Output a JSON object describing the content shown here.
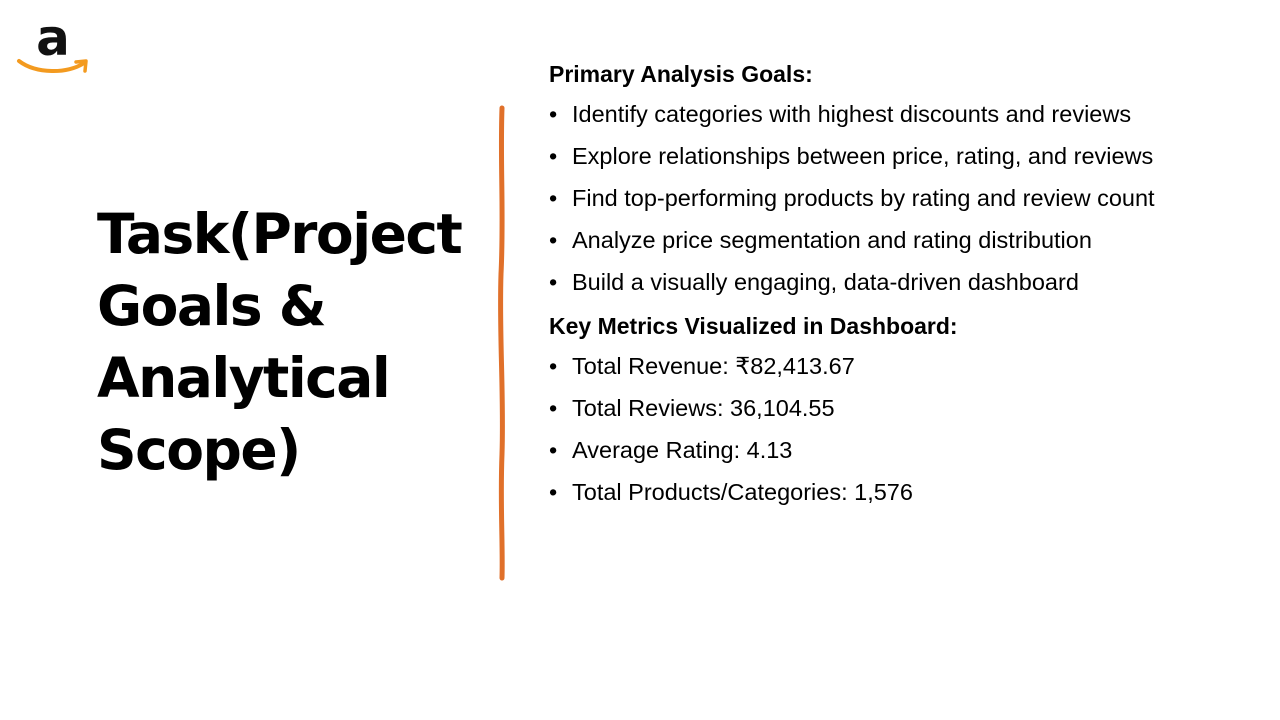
{
  "slide": {
    "logo": {
      "icon": "amazon-logo-icon",
      "letter": "a",
      "letter_color": "#111111",
      "smile_color": "#f39a1f"
    },
    "title_lines": [
      "Task(Project",
      "Goals &",
      "Analytical",
      "Scope)"
    ],
    "divider_color": "#e0702a",
    "primary_goals": {
      "heading": "Primary Analysis Goals:",
      "items": [
        "Identify categories with highest discounts and reviews",
        "Explore relationships between price, rating, and reviews",
        "Find top-performing products by rating and review count",
        "Analyze price segmentation and rating distribution",
        "Build a visually engaging, data-driven dashboard"
      ]
    },
    "key_metrics": {
      "heading": "Key Metrics Visualized in Dashboard:",
      "items": [
        "Total Revenue: ₹82,413.67",
        "Total Reviews: 36,104.55",
        "Average Rating: 4.13",
        "Total Products/Categories: 1,576"
      ]
    }
  }
}
